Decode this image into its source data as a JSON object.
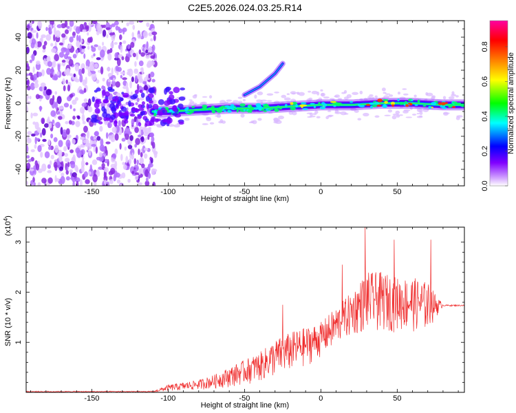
{
  "title": "C2E5.2026.024.03.25.R14",
  "chart_data": [
    {
      "type": "heatmap",
      "xlabel": "Height of straight line (km)",
      "ylabel": "Frequency (Hz)",
      "xlim": [
        -193,
        94
      ],
      "ylim": [
        -50,
        50
      ],
      "xticks": [
        -150,
        -100,
        -50,
        0,
        50
      ],
      "yticks": [
        -40,
        -20,
        0,
        20,
        40
      ],
      "colorbar": {
        "label": "Normalized spectral amplitude",
        "ticks": [
          0.0,
          0.2,
          0.4,
          0.6,
          0.8
        ],
        "tick_labels": [
          "0.0",
          "0.2",
          "0.4",
          "0.6",
          "0.8"
        ],
        "range": [
          0,
          0.95
        ],
        "colormap": [
          "#ffffff",
          "#8000ff",
          "#0000ff",
          "#00ffff",
          "#00ff00",
          "#ffff00",
          "#ff8000",
          "#ff0000",
          "#ff00a0"
        ]
      },
      "ridge": {
        "x": [
          -110,
          -100,
          -80,
          -60,
          -40,
          -20,
          0,
          20,
          40,
          60,
          80,
          94
        ],
        "freq": [
          -5,
          -5,
          -4,
          -3,
          -3,
          -2,
          -1,
          -1,
          0,
          0,
          -1,
          -1
        ]
      },
      "branch": {
        "x": [
          -50,
          -40,
          -30,
          -25
        ],
        "freq": [
          5,
          10,
          18,
          24
        ]
      }
    },
    {
      "type": "line",
      "xlabel": "Height of straight line (km)",
      "ylabel": "SNR (10 * v/v)",
      "yscale_label": "(x10^4)",
      "xlim": [
        -193,
        94
      ],
      "ylim": [
        0,
        3.3
      ],
      "xticks": [
        -150,
        -100,
        -50,
        0,
        50
      ],
      "yticks": [
        1,
        2,
        3
      ],
      "color": "#ee2222",
      "envelope": {
        "x": [
          -193,
          -110,
          -100,
          -90,
          -80,
          -70,
          -60,
          -50,
          -40,
          -30,
          -20,
          -10,
          0,
          10,
          20,
          30,
          40,
          50,
          60,
          70,
          80,
          94
        ],
        "upper": [
          0.02,
          0.02,
          0.15,
          0.2,
          0.25,
          0.35,
          0.5,
          0.65,
          0.8,
          1.05,
          1.2,
          1.3,
          1.4,
          1.7,
          2.0,
          2.4,
          2.4,
          2.3,
          2.3,
          2.2,
          1.75,
          1.75
        ],
        "lower": [
          0.0,
          0.0,
          0.02,
          0.03,
          0.05,
          0.07,
          0.1,
          0.15,
          0.2,
          0.3,
          0.4,
          0.5,
          0.7,
          0.9,
          1.1,
          1.2,
          1.2,
          1.2,
          1.2,
          1.2,
          1.72,
          1.72
        ]
      },
      "peaks": [
        {
          "x": 29,
          "y": 3.3
        },
        {
          "x": 48,
          "y": 3.05
        },
        {
          "x": 72,
          "y": 3.05
        },
        {
          "x": 14,
          "y": 2.55
        },
        {
          "x": -25,
          "y": 1.75
        }
      ]
    }
  ]
}
